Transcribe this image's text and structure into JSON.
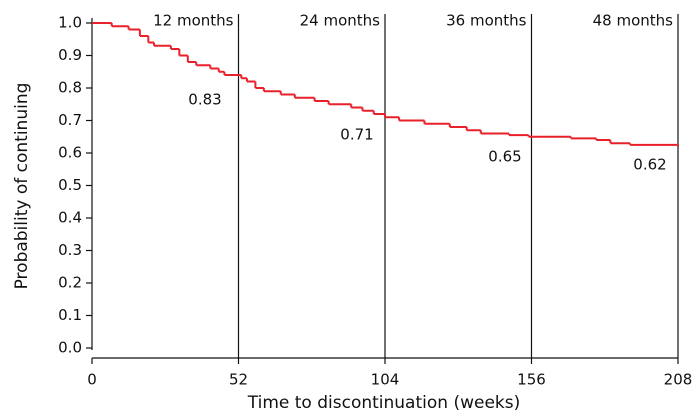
{
  "chart_data": {
    "type": "line",
    "step": "post",
    "x_label": "Time to discontinuation (weeks)",
    "y_label": "Probability of continuing",
    "xlim": [
      0,
      208
    ],
    "xticks": [
      0,
      52,
      104,
      156,
      208
    ],
    "ylim": [
      0,
      1
    ],
    "yticks": [
      {
        "value": 0,
        "label": "0.0"
      },
      0.1,
      0.2,
      0.3,
      0.4,
      0.5,
      0.6,
      0.7,
      0.8,
      0.9,
      {
        "value": 1,
        "label": "1.0"
      }
    ],
    "series": [
      {
        "name": "Probability of continuing",
        "color": "#e8202a",
        "x": [
          0,
          7,
          13,
          17,
          20,
          22,
          28,
          31,
          34,
          37,
          42,
          45,
          47,
          53,
          55,
          58,
          61,
          67,
          72,
          79,
          84,
          92,
          96,
          100,
          104,
          109,
          118,
          127,
          133,
          138,
          148,
          155,
          170,
          179,
          184,
          191,
          208
        ],
        "values": [
          1.0,
          0.99,
          0.98,
          0.96,
          0.94,
          0.93,
          0.92,
          0.9,
          0.88,
          0.87,
          0.86,
          0.85,
          0.84,
          0.83,
          0.82,
          0.8,
          0.79,
          0.78,
          0.77,
          0.76,
          0.75,
          0.74,
          0.73,
          0.72,
          0.71,
          0.7,
          0.69,
          0.68,
          0.67,
          0.66,
          0.655,
          0.65,
          0.645,
          0.64,
          0.63,
          0.625,
          0.62
        ]
      }
    ],
    "annotations": [
      {
        "x": 52,
        "text": "12 months",
        "value": 0.83
      },
      {
        "x": 104,
        "text": "24 months",
        "value": 0.71
      },
      {
        "x": 156,
        "text": "36 months",
        "value": 0.65
      },
      {
        "x": 208,
        "text": "48 months",
        "value": 0.62
      }
    ]
  }
}
